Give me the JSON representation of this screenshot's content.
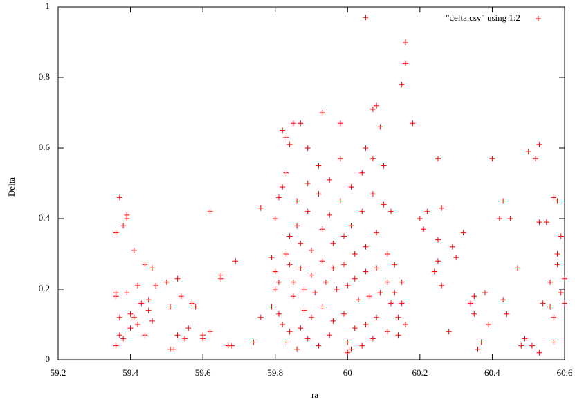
{
  "chart_data": {
    "type": "scatter",
    "xlabel": "ra",
    "ylabel": "Delta",
    "xlim": [
      59.2,
      60.6
    ],
    "xticks": [
      59.2,
      59.4,
      59.6,
      59.8,
      60,
      60.2,
      60.4,
      60.6
    ],
    "ylim": [
      0,
      1
    ],
    "yticks": [
      0,
      0.2,
      0.4,
      0.6,
      0.8,
      1
    ],
    "grid": false,
    "legend": "top-right",
    "x": [
      59.37,
      59.36,
      59.39,
      59.38,
      59.39,
      59.36,
      59.36,
      59.37,
      59.37,
      59.36,
      59.38,
      59.39,
      59.4,
      59.4,
      59.41,
      59.42,
      59.41,
      59.42,
      59.43,
      59.44,
      59.44,
      59.45,
      59.45,
      59.46,
      59.46,
      59.47,
      59.5,
      59.51,
      59.51,
      59.53,
      59.53,
      59.52,
      59.54,
      59.55,
      59.56,
      59.57,
      59.58,
      59.6,
      59.6,
      59.62,
      59.62,
      59.65,
      59.65,
      59.67,
      59.68,
      59.69,
      59.74,
      59.76,
      59.76,
      60.05,
      60.16,
      60.16,
      60.15,
      60.18,
      60.08,
      60.07,
      59.93,
      60.09,
      59.98,
      59.85,
      59.87,
      59.82,
      59.83,
      60.05,
      59.89,
      59.84,
      60.2,
      60.21,
      60.22,
      60.25,
      60.26,
      60.25,
      60.24,
      60.26,
      60.25,
      60.28,
      60.29,
      60.3,
      60.32,
      60.34,
      60.35,
      60.35,
      60.36,
      60.37,
      60.38,
      60.39,
      60.4,
      60.42,
      60.43,
      60.43,
      60.44,
      60.45,
      60.47,
      60.48,
      60.49,
      60.5,
      60.51,
      60.52,
      60.53,
      60.53,
      60.53,
      60.54,
      60.55,
      60.56,
      60.57,
      60.57,
      60.58,
      60.58,
      60.58,
      60.59,
      60.59,
      60.6,
      60.6,
      60.56,
      60.57,
      59.79,
      59.8,
      59.81,
      59.8,
      59.79,
      59.81,
      59.82,
      59.8,
      59.81,
      59.82,
      59.83,
      59.84,
      59.83,
      59.84,
      59.85,
      59.85,
      59.84,
      59.83,
      59.86,
      59.86,
      59.87,
      59.87,
      59.88,
      59.88,
      59.87,
      59.86,
      59.89,
      59.89,
      59.9,
      59.9,
      59.91,
      59.9,
      59.89,
      59.92,
      59.92,
      59.93,
      59.93,
      59.94,
      59.93,
      59.92,
      59.95,
      59.95,
      59.96,
      59.96,
      59.97,
      59.96,
      59.95,
      59.98,
      59.98,
      59.99,
      59.99,
      60.0,
      59.99,
      60.0,
      60.0,
      60.01,
      60.01,
      60.02,
      60.02,
      60.03,
      60.02,
      60.01,
      60.04,
      60.04,
      60.05,
      60.05,
      60.06,
      60.05,
      60.04,
      60.07,
      60.07,
      60.08,
      60.08,
      60.09,
      60.08,
      60.07,
      60.1,
      60.1,
      60.11,
      60.11,
      60.12,
      60.11,
      60.12,
      60.13,
      60.13,
      60.14,
      60.14,
      60.15,
      60.15,
      60.16
    ],
    "series": [
      {
        "name": "\"delta.csv\" using 1:2",
        "color": "#ff0000",
        "values": [
          0.46,
          0.36,
          0.41,
          0.38,
          0.4,
          0.19,
          0.18,
          0.12,
          0.07,
          0.04,
          0.06,
          0.19,
          0.13,
          0.09,
          0.31,
          0.21,
          0.12,
          0.1,
          0.16,
          0.27,
          0.07,
          0.14,
          0.17,
          0.26,
          0.11,
          0.21,
          0.22,
          0.15,
          0.03,
          0.23,
          0.07,
          0.03,
          0.18,
          0.06,
          0.09,
          0.16,
          0.15,
          0.06,
          0.07,
          0.08,
          0.42,
          0.24,
          0.23,
          0.04,
          0.04,
          0.28,
          0.05,
          0.43,
          0.12,
          0.97,
          0.9,
          0.84,
          0.78,
          0.67,
          0.72,
          0.71,
          0.7,
          0.66,
          0.67,
          0.67,
          0.67,
          0.65,
          0.63,
          0.6,
          0.6,
          0.61,
          0.4,
          0.37,
          0.42,
          0.57,
          0.43,
          0.34,
          0.25,
          0.21,
          0.28,
          0.08,
          0.32,
          0.29,
          0.36,
          0.16,
          0.18,
          0.13,
          0.03,
          0.05,
          0.19,
          0.1,
          0.57,
          0.4,
          0.45,
          0.17,
          0.13,
          0.4,
          0.26,
          0.04,
          0.06,
          0.59,
          0.04,
          0.57,
          0.61,
          0.39,
          0.02,
          0.16,
          0.39,
          0.22,
          0.05,
          0.46,
          0.45,
          0.27,
          0.3,
          0.19,
          0.35,
          0.23,
          0.16,
          0.15,
          0.12,
          0.29,
          0.25,
          0.22,
          0.2,
          0.15,
          0.13,
          0.1,
          0.4,
          0.46,
          0.49,
          0.53,
          0.35,
          0.3,
          0.27,
          0.22,
          0.18,
          0.08,
          0.05,
          0.45,
          0.38,
          0.33,
          0.26,
          0.2,
          0.14,
          0.09,
          0.03,
          0.5,
          0.42,
          0.31,
          0.24,
          0.19,
          0.12,
          0.06,
          0.55,
          0.47,
          0.37,
          0.28,
          0.22,
          0.15,
          0.04,
          0.51,
          0.41,
          0.33,
          0.26,
          0.2,
          0.11,
          0.07,
          0.57,
          0.45,
          0.35,
          0.27,
          0.21,
          0.13,
          0.05,
          0.02,
          0.49,
          0.38,
          0.3,
          0.23,
          0.17,
          0.09,
          0.03,
          0.53,
          0.42,
          0.32,
          0.25,
          0.18,
          0.1,
          0.04,
          0.57,
          0.47,
          0.36,
          0.26,
          0.19,
          0.12,
          0.06,
          0.55,
          0.44,
          0.3,
          0.22,
          0.16,
          0.08,
          0.42,
          0.27,
          0.19,
          0.12,
          0.07,
          0.22,
          0.16,
          0.1
        ]
      }
    ]
  }
}
